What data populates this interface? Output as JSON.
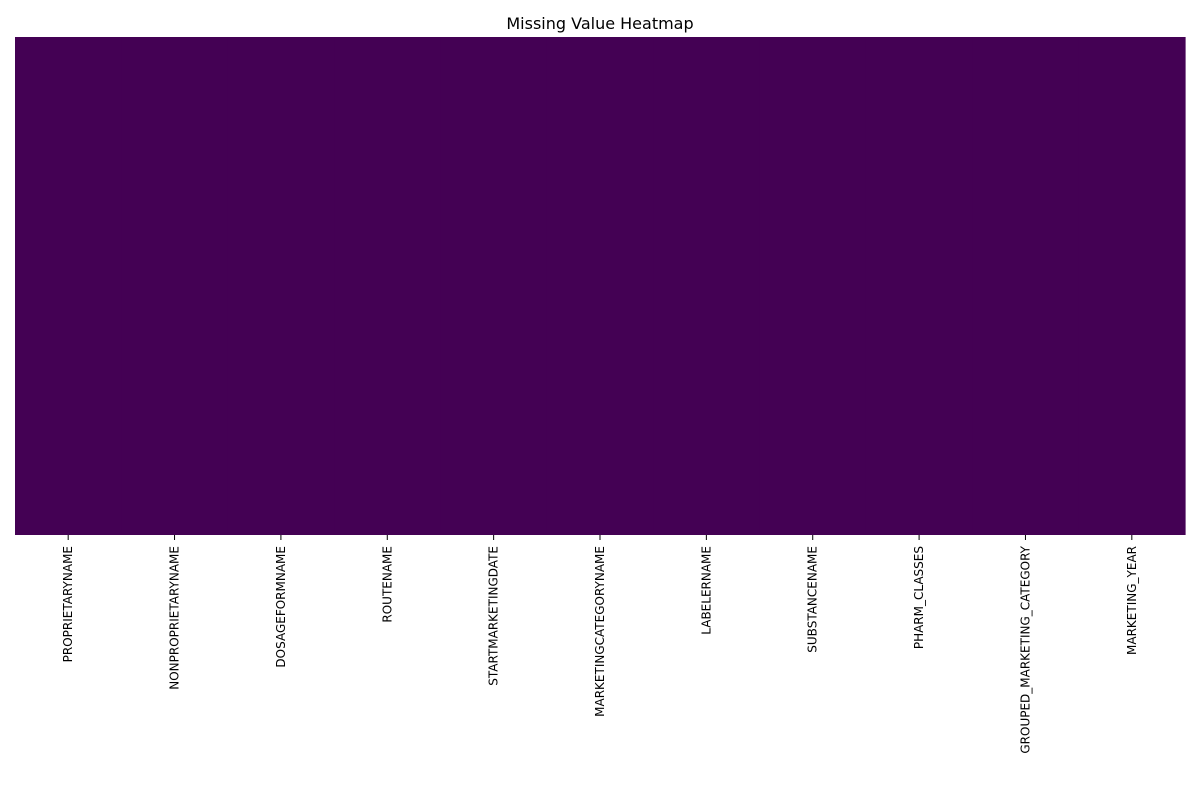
{
  "chart_data": {
    "type": "heatmap",
    "title": "Missing Value Heatmap",
    "xlabel": "",
    "ylabel": "",
    "columns": [
      "PROPRIETARYNAME",
      "NONPROPRIETARYNAME",
      "DOSAGEFORMNAME",
      "ROUTENAME",
      "STARTMARKETINGDATE",
      "MARKETINGCATEGORYNAME",
      "LABELERNAME",
      "SUBSTANCENAME",
      "PHARM_CLASSES",
      "GROUPED_MARKETING_CATEGORY",
      "MARKETING_YEAR"
    ],
    "missing": [
      false,
      false,
      false,
      false,
      false,
      false,
      false,
      false,
      false,
      false,
      false
    ],
    "y_ticks_shown": false,
    "colorbar": false,
    "colors": {
      "present": "#440154",
      "missing": "#fde725"
    }
  }
}
